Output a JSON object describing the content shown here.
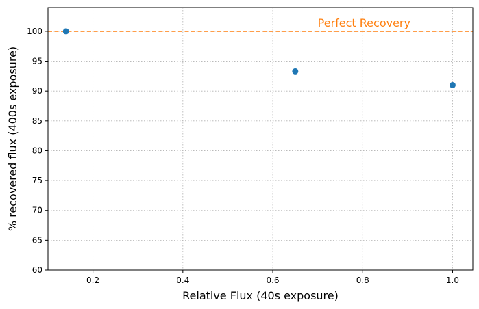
{
  "chart_data": {
    "type": "scatter",
    "xlabel": "Relative Flux (40s exposure)",
    "ylabel": "% recovered flux (400s exposure)",
    "xlim": [
      0.1,
      1.045
    ],
    "ylim": [
      60,
      104
    ],
    "xticks": [
      0.2,
      0.4,
      0.6,
      0.8,
      1.0
    ],
    "xtick_labels": [
      "0.2",
      "0.4",
      "0.6",
      "0.8",
      "1.0"
    ],
    "yticks": [
      60,
      65,
      70,
      75,
      80,
      85,
      90,
      95,
      100
    ],
    "ytick_labels": [
      "60",
      "65",
      "70",
      "75",
      "80",
      "85",
      "90",
      "95",
      "100"
    ],
    "grid": true,
    "series": [
      {
        "color": "#1f77b4",
        "x": [
          0.14,
          0.65,
          1.0
        ],
        "y": [
          100.0,
          93.3,
          91.0
        ]
      }
    ],
    "reference_line": {
      "y": 100,
      "style": "dashed",
      "color": "#ff7f0e",
      "label": "Perfect Recovery",
      "label_x": 0.7,
      "label_y": 101.5
    }
  }
}
